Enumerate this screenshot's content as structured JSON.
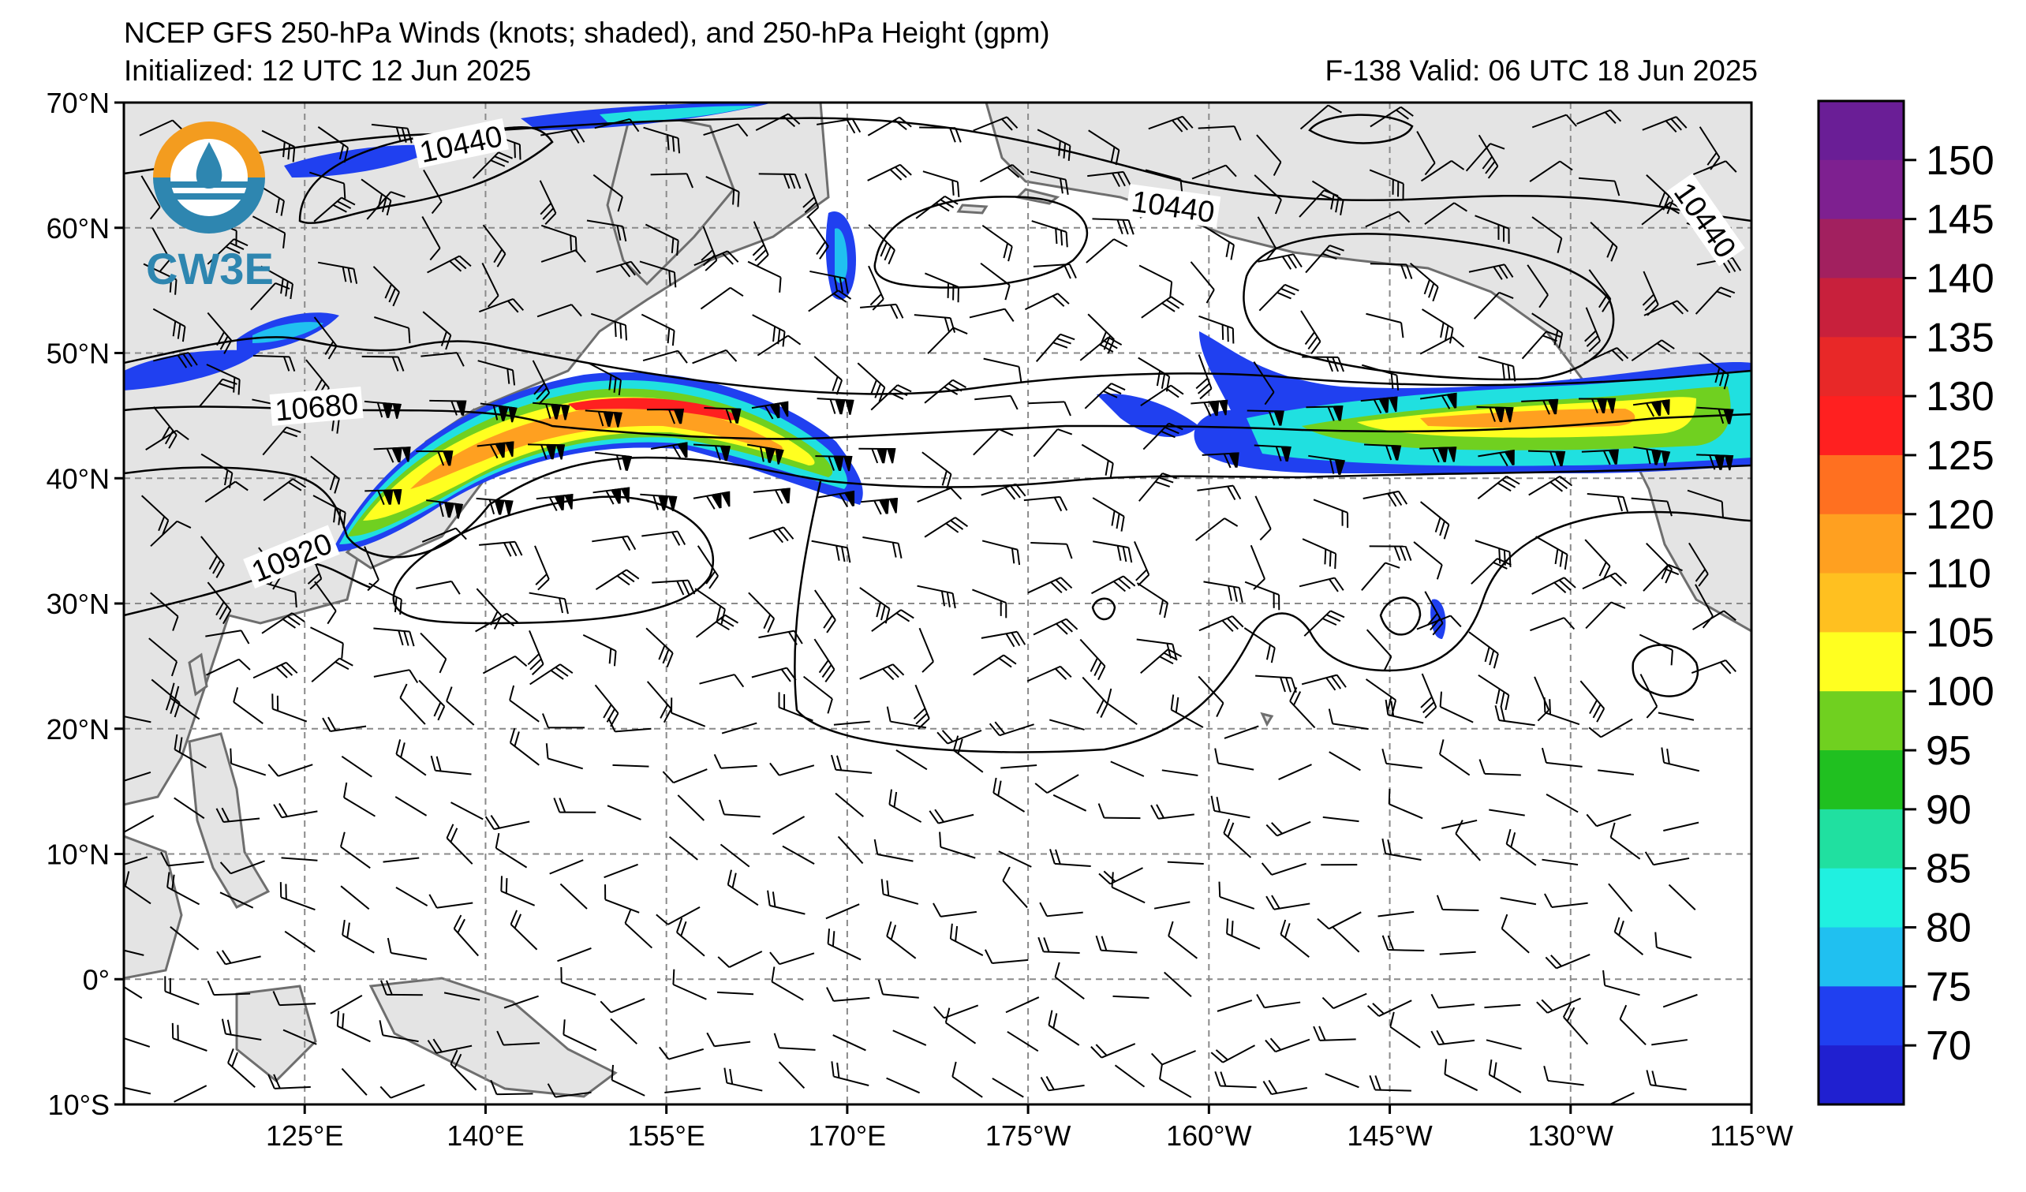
{
  "header": {
    "title": "NCEP GFS 250-hPa Winds (knots; shaded), and 250-hPa Height (gpm)",
    "initialized": "Initialized: 12 UTC 12 Jun 2025",
    "valid": "F-138  Valid: 06 UTC 18 Jun 2025"
  },
  "logo": {
    "text": "CW3E",
    "color_ring_top": "#f39c1f",
    "color_ring_bottom": "#2e86b0"
  },
  "map": {
    "lon_range": [
      110,
      245
    ],
    "lat_range": [
      -10,
      70
    ],
    "lat_labels": [
      "70°N",
      "60°N",
      "50°N",
      "40°N",
      "30°N",
      "20°N",
      "10°N",
      "0°",
      "10°S"
    ],
    "lat_values": [
      70,
      60,
      50,
      40,
      30,
      20,
      10,
      0,
      -10
    ],
    "lon_labels": [
      "125°E",
      "140°E",
      "155°E",
      "170°E",
      "175°W",
      "160°W",
      "145°W",
      "130°W",
      "115°W"
    ],
    "lon_values": [
      125,
      140,
      155,
      170,
      185,
      200,
      215,
      230,
      245
    ],
    "land_color": "#e4e4e4",
    "coast_color": "#6e6e6e",
    "contour_labels": [
      {
        "text": "10440",
        "lon": 138,
        "lat": 66.5,
        "angle": -12
      },
      {
        "text": "10440",
        "lon": 197,
        "lat": 61.5,
        "angle": 8
      },
      {
        "text": "10440",
        "lon": 241,
        "lat": 60.5,
        "angle": 55
      },
      {
        "text": "10680",
        "lon": 126,
        "lat": 45.5,
        "angle": -5
      },
      {
        "text": "10920",
        "lon": 124,
        "lat": 33.5,
        "angle": -22
      }
    ]
  },
  "colorbar": {
    "labels": [
      "150",
      "145",
      "140",
      "135",
      "130",
      "125",
      "120",
      "110",
      "105",
      "100",
      "95",
      "90",
      "85",
      "80",
      "75",
      "70"
    ],
    "colors": [
      "#6a1e96",
      "#7e2090",
      "#a2205f",
      "#c8203c",
      "#e82828",
      "#ff2020",
      "#ff7020",
      "#ffa020",
      "#ffc020",
      "#ffff20",
      "#70d020",
      "#20c020",
      "#20e0a0",
      "#20f0e0",
      "#20c0f0",
      "#2040f0",
      "#2020d0"
    ]
  },
  "chart_data": {
    "type": "map",
    "variable": "250-hPa Winds (knots; shaded), 250-hPa Height (gpm)",
    "shading_range_knots": [
      70,
      150
    ],
    "height_contours_gpm": [
      10440,
      10680,
      10920
    ]
  }
}
